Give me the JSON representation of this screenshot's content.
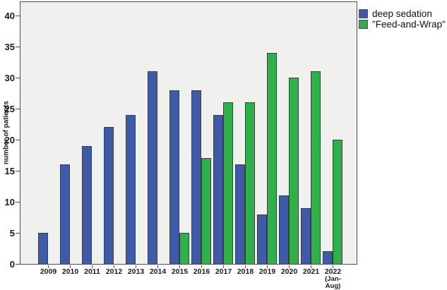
{
  "chart_data": {
    "type": "bar",
    "title": "",
    "xlabel": "",
    "ylabel": "number of patients",
    "categories": [
      "2009",
      "2010",
      "2011",
      "2012",
      "2013",
      "2014",
      "2015",
      "2016",
      "2017",
      "2018",
      "2019",
      "2020",
      "2021",
      "2022"
    ],
    "last_category_note_lines": [
      "(Jan-",
      "Aug)"
    ],
    "series": [
      {
        "name": "deep sedation",
        "color": "#3E5BA9",
        "values": [
          5,
          16,
          19,
          22,
          24,
          31,
          28,
          28,
          24,
          16,
          8,
          11,
          9,
          2
        ]
      },
      {
        "name": "\"Feed-and-Wrap\"",
        "color": "#2EB04A",
        "values": [
          null,
          null,
          null,
          null,
          null,
          null,
          5,
          17,
          26,
          26,
          34,
          30,
          31,
          20
        ]
      }
    ],
    "yticks": [
      0,
      5,
      10,
      15,
      20,
      25,
      30,
      35,
      40
    ],
    "ylim": [
      0,
      42.3
    ],
    "grid": false,
    "legend_position": "top-right",
    "plot_background": "#F0F0EE",
    "bar_outline": "#3D3D3D"
  }
}
